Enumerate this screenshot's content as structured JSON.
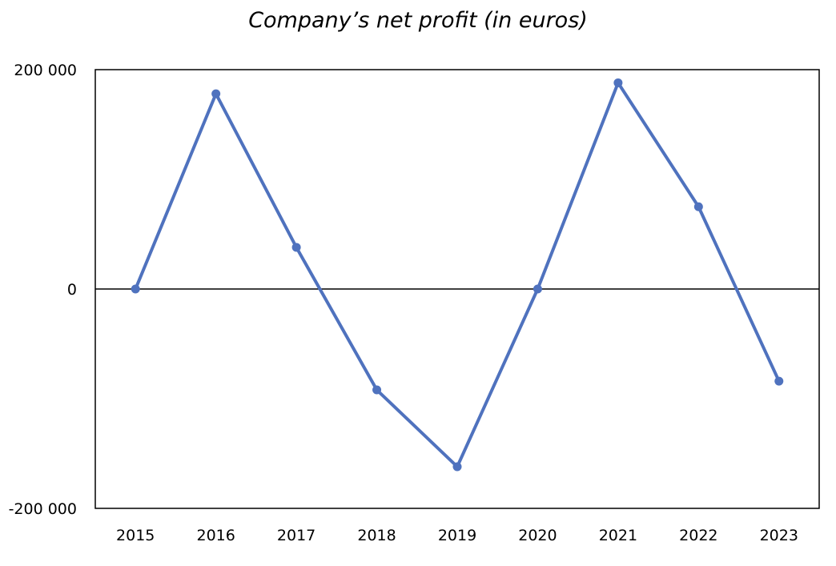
{
  "chart_data": {
    "type": "line",
    "title": "Company’s net profit (in euros)",
    "xlabel": "",
    "ylabel": "",
    "categories": [
      "2015",
      "2016",
      "2017",
      "2018",
      "2019",
      "2020",
      "2021",
      "2022",
      "2023"
    ],
    "series": [
      {
        "values": [
          0,
          178000,
          38000,
          -92000,
          -162000,
          0,
          188000,
          75000,
          -84000
        ]
      }
    ],
    "ylim": [
      -200000,
      200000
    ],
    "ytick_labels": [
      "200 000",
      "0",
      "-200 000"
    ],
    "ytick_values": [
      200000,
      0,
      -200000
    ],
    "grid": false,
    "legend": "none",
    "colors": {
      "line": "#4f72be",
      "axis": "#000000"
    }
  }
}
